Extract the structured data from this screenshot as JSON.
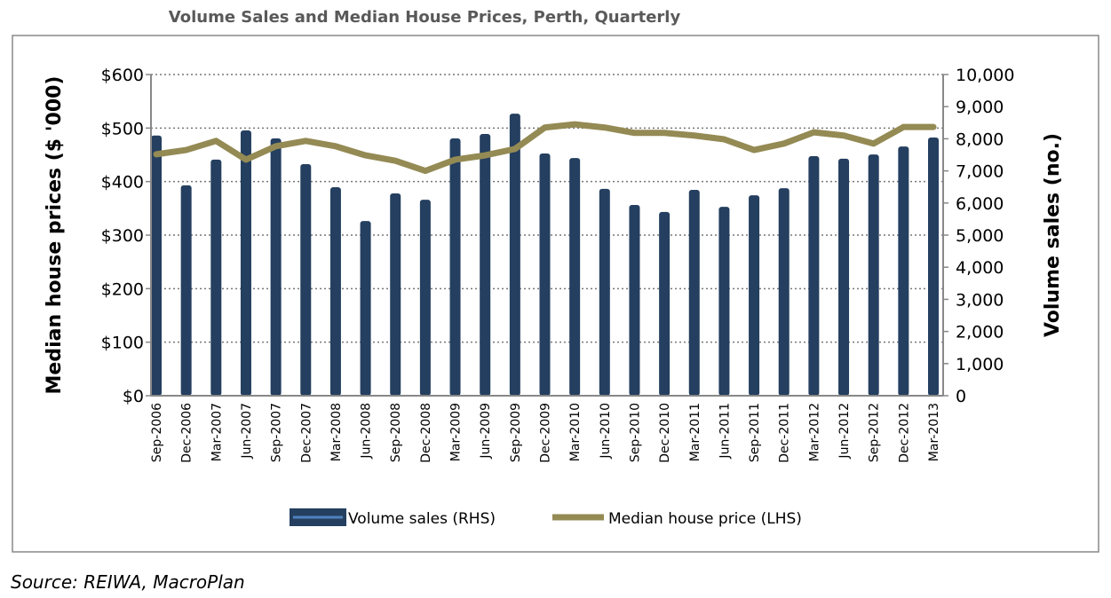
{
  "chart_data": {
    "type": "bar+line",
    "title": "Volume Sales and Median House Prices, Perth, Quarterly",
    "categories": [
      "Sep-2006",
      "Dec-2006",
      "Mar-2007",
      "Jun-2007",
      "Sep-2007",
      "Dec-2007",
      "Mar-2008",
      "Jun-2008",
      "Sep-2008",
      "Dec-2008",
      "Mar-2009",
      "Jun-2009",
      "Sep-2009",
      "Dec-2009",
      "Mar-2010",
      "Jun-2010",
      "Sep-2010",
      "Dec-2010",
      "Mar-2011",
      "Jun-2011",
      "Sep-2011",
      "Dec-2011",
      "Mar-2012",
      "Jun-2012",
      "Sep-2012",
      "Dec-2012",
      "Mar-2013"
    ],
    "series": [
      {
        "name": "Volume sales (RHS)",
        "type": "bar",
        "axis": "right",
        "color": "#243f60",
        "values": [
          8100,
          6550,
          7350,
          8260,
          8010,
          7210,
          6490,
          5440,
          6300,
          6100,
          8010,
          8150,
          8780,
          7540,
          7400,
          6440,
          5940,
          5720,
          6410,
          5880,
          6240,
          6460,
          7460,
          7380,
          7510,
          7760,
          8040
        ]
      },
      {
        "name": "Median house price (LHS)",
        "type": "line",
        "axis": "left",
        "color": "#948a54",
        "values": [
          451,
          459,
          476,
          441,
          466,
          476,
          466,
          449,
          439,
          420,
          441,
          449,
          461,
          501,
          507,
          501,
          491,
          491,
          486,
          479,
          459,
          471,
          492,
          486,
          471,
          502,
          502
        ]
      }
    ],
    "ylabel": "Median house prices ($ '000)",
    "ylabel_right": "Volume sales (no.)",
    "ylim": [
      0,
      600
    ],
    "ylim_right": [
      0,
      10000
    ],
    "yticks": [
      "$0",
      "$100",
      "$200",
      "$300",
      "$400",
      "$500",
      "$600"
    ],
    "yticks_right": [
      "0",
      "1,000",
      "2,000",
      "3,000",
      "4,000",
      "5,000",
      "6,000",
      "7,000",
      "8,000",
      "9,000",
      "10,000"
    ],
    "grid": "horizontal dotted",
    "legend_placement": "bottom"
  },
  "source": "Source: REIWA, MacroPlan"
}
